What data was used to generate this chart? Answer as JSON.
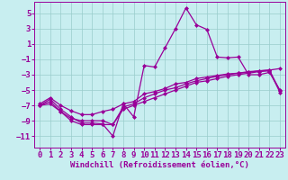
{
  "xlabel": "Windchill (Refroidissement éolien,°C)",
  "bg_color": "#c8eef0",
  "line_color": "#990099",
  "grid_color": "#99cccc",
  "xlim": [
    -0.5,
    23.5
  ],
  "ylim": [
    -12.5,
    6.5
  ],
  "yticks": [
    -11,
    -9,
    -7,
    -5,
    -3,
    -1,
    1,
    3,
    5
  ],
  "xticks": [
    0,
    1,
    2,
    3,
    4,
    5,
    6,
    7,
    8,
    9,
    10,
    11,
    12,
    13,
    14,
    15,
    16,
    17,
    18,
    19,
    20,
    21,
    22,
    23
  ],
  "series1_x": [
    0,
    1,
    2,
    3,
    4,
    5,
    6,
    7,
    8,
    9,
    10,
    11,
    12,
    13,
    14,
    15,
    16,
    17,
    18,
    19,
    20,
    21,
    22,
    23
  ],
  "series1_y": [
    -7.0,
    -6.2,
    -7.5,
    -8.5,
    -9.3,
    -9.3,
    -9.4,
    -11.0,
    -6.8,
    -8.5,
    -1.8,
    -2.0,
    0.5,
    3.0,
    5.7,
    3.5,
    2.9,
    -0.7,
    -0.8,
    -0.7,
    -3.0,
    -3.0,
    -2.7,
    -5.0
  ],
  "series2_x": [
    0,
    1,
    2,
    3,
    4,
    5,
    6,
    7,
    8,
    9,
    10,
    11,
    12,
    13,
    14,
    15,
    16,
    17,
    18,
    19,
    20,
    21,
    22,
    23
  ],
  "series2_y": [
    -6.8,
    -6.0,
    -7.0,
    -7.7,
    -8.2,
    -8.2,
    -7.8,
    -7.5,
    -6.8,
    -6.5,
    -5.5,
    -5.2,
    -4.8,
    -4.2,
    -4.0,
    -3.5,
    -3.3,
    -3.1,
    -2.9,
    -2.8,
    -2.6,
    -2.5,
    -2.4,
    -2.2
  ],
  "series3_x": [
    0,
    1,
    2,
    3,
    4,
    5,
    6,
    7,
    8,
    9,
    10,
    11,
    12,
    13,
    14,
    15,
    16,
    17,
    18,
    19,
    20,
    21,
    22,
    23
  ],
  "series3_y": [
    -7.0,
    -6.5,
    -7.8,
    -9.0,
    -9.5,
    -9.5,
    -9.5,
    -9.5,
    -7.5,
    -7.0,
    -6.5,
    -6.0,
    -5.5,
    -5.0,
    -4.5,
    -4.0,
    -3.8,
    -3.5,
    -3.2,
    -3.0,
    -2.8,
    -2.6,
    -2.5,
    -5.3
  ],
  "series4_x": [
    0,
    1,
    2,
    3,
    4,
    5,
    6,
    7,
    8,
    9,
    10,
    11,
    12,
    13,
    14,
    15,
    16,
    17,
    18,
    19,
    20,
    21,
    22,
    23
  ],
  "series4_y": [
    -7.0,
    -6.8,
    -7.8,
    -8.7,
    -9.0,
    -9.0,
    -9.0,
    -9.5,
    -7.2,
    -6.8,
    -6.0,
    -5.5,
    -5.0,
    -4.7,
    -4.2,
    -3.8,
    -3.5,
    -3.2,
    -3.0,
    -2.8,
    -2.7,
    -2.5,
    -2.4,
    -5.1
  ],
  "tick_fontsize": 6.5,
  "xlabel_fontsize": 6.5,
  "marker_size": 2.0,
  "line_width": 0.9
}
